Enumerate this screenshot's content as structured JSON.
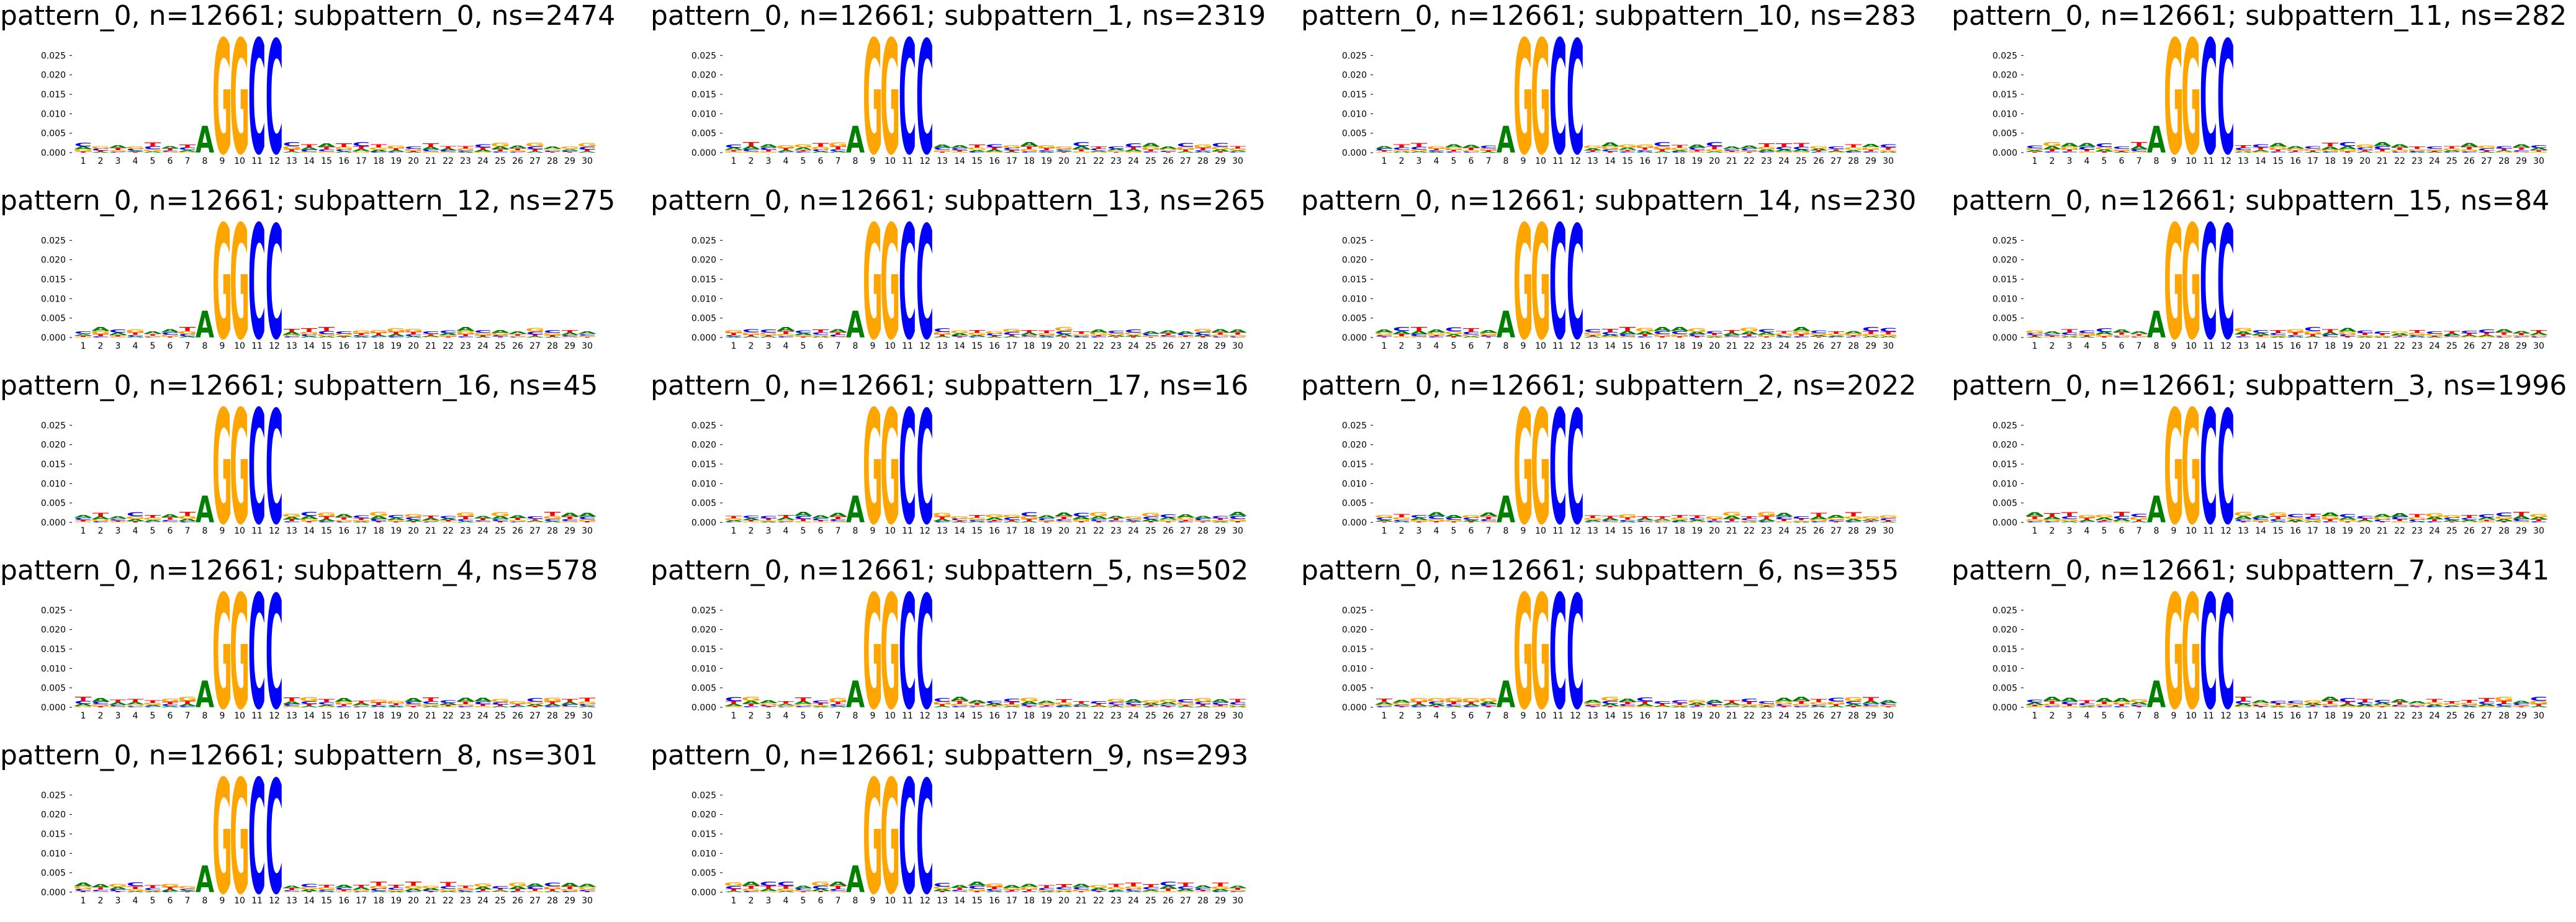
{
  "colors": {
    "A": "#008000",
    "C": "#0000ff",
    "G": "#ffa500",
    "T": "#ff0000"
  },
  "chart_data": [
    {
      "type": "sequence-logo",
      "title": "pattern_0, n=12661; subpattern_0, ns=2474",
      "variant": "s0"
    },
    {
      "type": "sequence-logo",
      "title": "pattern_0, n=12661; subpattern_1, ns=2319",
      "variant": "s1"
    },
    {
      "type": "sequence-logo",
      "title": "pattern_0, n=12661; subpattern_10, ns=283",
      "variant": "s10"
    },
    {
      "type": "sequence-logo",
      "title": "pattern_0, n=12661; subpattern_11, ns=282",
      "variant": "s11"
    },
    {
      "type": "sequence-logo",
      "title": "pattern_0, n=12661; subpattern_12, ns=275",
      "variant": "s12"
    },
    {
      "type": "sequence-logo",
      "title": "pattern_0, n=12661; subpattern_13, ns=265",
      "variant": "s13"
    },
    {
      "type": "sequence-logo",
      "title": "pattern_0, n=12661; subpattern_14, ns=230",
      "variant": "s14"
    },
    {
      "type": "sequence-logo",
      "title": "pattern_0, n=12661; subpattern_15, ns=84",
      "variant": "s15"
    },
    {
      "type": "sequence-logo",
      "title": "pattern_0, n=12661; subpattern_16, ns=45",
      "variant": "s16"
    },
    {
      "type": "sequence-logo",
      "title": "pattern_0, n=12661; subpattern_17, ns=16",
      "variant": "s17"
    },
    {
      "type": "sequence-logo",
      "title": "pattern_0, n=12661; subpattern_2, ns=2022",
      "variant": "s2"
    },
    {
      "type": "sequence-logo",
      "title": "pattern_0, n=12661; subpattern_3, ns=1996",
      "variant": "s3"
    },
    {
      "type": "sequence-logo",
      "title": "pattern_0, n=12661; subpattern_4, ns=578",
      "variant": "s4"
    },
    {
      "type": "sequence-logo",
      "title": "pattern_0, n=12661; subpattern_5, ns=502",
      "variant": "s5"
    },
    {
      "type": "sequence-logo",
      "title": "pattern_0, n=12661; subpattern_6, ns=355",
      "variant": "s6"
    },
    {
      "type": "sequence-logo",
      "title": "pattern_0, n=12661; subpattern_7, ns=341",
      "variant": "s7"
    },
    {
      "type": "sequence-logo",
      "title": "pattern_0, n=12661; subpattern_8, ns=301",
      "variant": "s8"
    },
    {
      "type": "sequence-logo",
      "title": "pattern_0, n=12661; subpattern_9, ns=293",
      "variant": "s9"
    }
  ],
  "axes": {
    "positions": [
      1,
      2,
      3,
      4,
      5,
      6,
      7,
      8,
      9,
      10,
      11,
      12,
      13,
      14,
      15,
      16,
      17,
      18,
      19,
      20,
      21,
      22,
      23,
      24,
      25,
      26,
      27,
      28,
      29,
      30
    ],
    "y_ticks": [
      "0.000",
      "0.005",
      "0.010",
      "0.015",
      "0.020",
      "0.025"
    ],
    "ylim": [
      0,
      0.03
    ]
  },
  "logo_profile": {
    "fixed": {
      "8": [
        [
          "A",
          0.0068
        ]
      ],
      "9": [
        [
          "G",
          0.029
        ]
      ],
      "10": [
        [
          "G",
          0.029
        ]
      ],
      "11": [
        [
          "C",
          0.029
        ]
      ],
      "12": [
        [
          "C",
          0.0288
        ]
      ]
    },
    "background_height": 0.0022
  }
}
